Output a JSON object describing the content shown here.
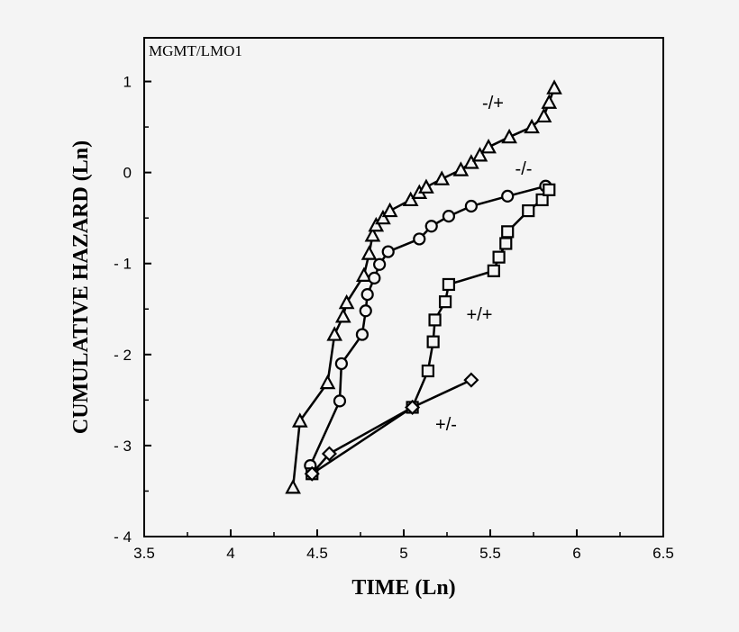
{
  "chart_data": {
    "type": "line",
    "panel_label": "MGMT/LMO1",
    "xlabel": "TIME (Ln)",
    "ylabel": "CUMULATIVE HAZARD (Ln)",
    "xlim": [
      3.5,
      6.5
    ],
    "ylim": [
      -4,
      1.48
    ],
    "xticks": [
      3.5,
      4,
      4.5,
      5,
      5.5,
      6,
      6.5
    ],
    "xtick_labels": [
      "3.5",
      "4",
      "4.5",
      "5",
      "5.5",
      "6",
      "6.5"
    ],
    "yticks": [
      1,
      0,
      -1,
      -2,
      -3,
      -4
    ],
    "ytick_labels": [
      "1",
      "0",
      "- 1",
      "- 2",
      "- 3",
      "- 4"
    ],
    "grid": false,
    "series": [
      {
        "name": "-/+",
        "marker": "triangle",
        "x": [
          4.36,
          4.4,
          4.56,
          4.6,
          4.65,
          4.67,
          4.77,
          4.8,
          4.82,
          4.84,
          4.88,
          4.92,
          5.04,
          5.09,
          5.13,
          5.22,
          5.33,
          5.39,
          5.44,
          5.49,
          5.61,
          5.74,
          5.81,
          5.84,
          5.87
        ],
        "y": [
          -3.46,
          -2.73,
          -2.31,
          -1.78,
          -1.58,
          -1.43,
          -1.13,
          -0.89,
          -0.69,
          -0.58,
          -0.5,
          -0.42,
          -0.3,
          -0.22,
          -0.16,
          -0.07,
          0.03,
          0.11,
          0.19,
          0.28,
          0.39,
          0.5,
          0.62,
          0.77,
          0.93
        ]
      },
      {
        "name": "-/-",
        "marker": "circle",
        "x": [
          4.46,
          4.63,
          4.64,
          4.76,
          4.78,
          4.79,
          4.83,
          4.86,
          4.91,
          5.09,
          5.16,
          5.26,
          5.39,
          5.6,
          5.82
        ],
        "y": [
          -3.22,
          -2.51,
          -2.1,
          -1.78,
          -1.52,
          -1.34,
          -1.16,
          -1.01,
          -0.87,
          -0.73,
          -0.59,
          -0.48,
          -0.37,
          -0.26,
          -0.15
        ]
      },
      {
        "name": "+/+",
        "marker": "square",
        "x": [
          4.47,
          5.05,
          5.14,
          5.17,
          5.18,
          5.24,
          5.26,
          5.52,
          5.55,
          5.59,
          5.6,
          5.72,
          5.8,
          5.84
        ],
        "y": [
          -3.31,
          -2.58,
          -2.18,
          -1.86,
          -1.62,
          -1.42,
          -1.23,
          -1.08,
          -0.93,
          -0.78,
          -0.65,
          -0.42,
          -0.3,
          -0.19
        ]
      },
      {
        "name": "+/-",
        "marker": "diamond",
        "x": [
          4.47,
          4.57,
          5.05,
          5.39
        ],
        "y": [
          -3.31,
          -3.09,
          -2.58,
          -2.28
        ]
      }
    ]
  }
}
